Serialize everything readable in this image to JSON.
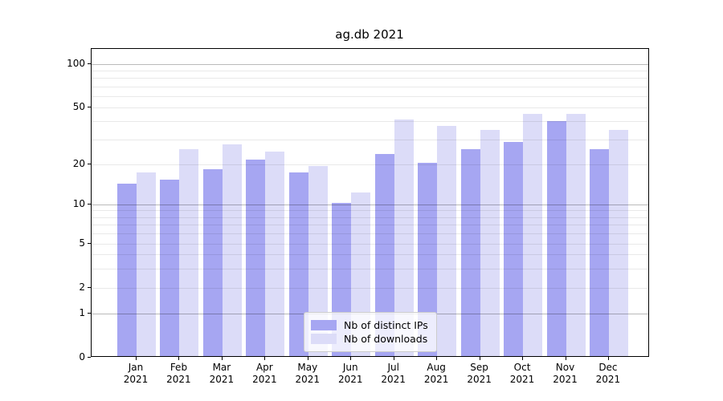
{
  "title": "ag.db 2021",
  "chart_data": {
    "type": "bar",
    "title": "ag.db 2021",
    "categories": [
      "Jan 2021",
      "Feb 2021",
      "Mar 2021",
      "Apr 2021",
      "May 2021",
      "Jun 2021",
      "Jul 2021",
      "Aug 2021",
      "Sep 2021",
      "Oct 2021",
      "Nov 2021",
      "Dec 2021"
    ],
    "series": [
      {
        "name": "Nb of distinct IPs",
        "color": "#a6a6f2",
        "values": [
          14,
          15,
          18,
          21,
          17,
          10,
          23,
          20,
          25,
          28,
          39,
          25
        ]
      },
      {
        "name": "Nb of downloads",
        "color": "#dcdcf8",
        "values": [
          17,
          25,
          27,
          24,
          19,
          12,
          40,
          36,
          34,
          44,
          44,
          34
        ]
      }
    ],
    "xlabel": "",
    "ylabel": "",
    "yscale": "symlog",
    "yticks": [
      0,
      1,
      2,
      5,
      10,
      20,
      50,
      100
    ],
    "minor_gridlines": [
      2,
      3,
      4,
      5,
      6,
      7,
      8,
      9,
      20,
      30,
      40,
      50,
      60,
      70,
      80,
      90
    ],
    "major_gridlines": [
      1,
      10,
      100
    ],
    "ylim": [
      0,
      128
    ],
    "grid": true,
    "legend_position": "lower center"
  },
  "legend": {
    "items": [
      {
        "label": "Nb of distinct IPs",
        "color": "#a6a6f2"
      },
      {
        "label": "Nb of downloads",
        "color": "#dcdcf8"
      }
    ]
  },
  "colors": {
    "series_ips": "#a6a6f2",
    "series_downloads": "#dcdcf8",
    "spine": "#000000",
    "legend_border": "#cccccc"
  }
}
